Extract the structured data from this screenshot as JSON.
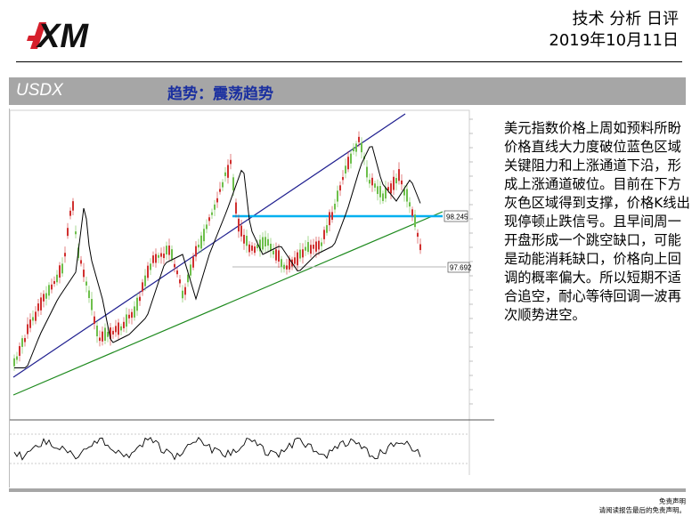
{
  "brand": {
    "logo_text": "XM",
    "accent_color": "#d6202c"
  },
  "header": {
    "report_type": "技术 分析 日评",
    "date": "2019年10月11日"
  },
  "title_bar": {
    "ticker": "USDX",
    "trend_label": "趋势：震荡趋势",
    "background": "#a6a6a6",
    "trend_color": "#1a2fa0"
  },
  "chart": {
    "price_levels": {
      "resistance": "98.245",
      "support": "97.692"
    },
    "colors": {
      "resistance_line": "#00b0f0",
      "upper_channel": "#1f1f8f",
      "lower_channel": "#1e8a1e",
      "moving_average": "#000000",
      "bull_candle": "#6dbf4b",
      "bear_candle": "#d0302f"
    }
  },
  "analysis": {
    "text": "美元指数价格上周如预料所盼价格直线大力度破位蓝色区域关键阻力和上涨通道下沿，形成上涨通道破位。目前在下方灰色区域得到支撑，价格K线出现停顿止跌信号。且早间周一开盘形成一个跳空缺口，可能是动能消耗缺口，价格向上回调的概率偏大。所以短期不适合追空，耐心等待回调一波再次顺势进空。"
  },
  "footer": {
    "disclaimer_title": "免责声明",
    "disclaimer_text": "请阅读报告最后的免责声明。"
  }
}
